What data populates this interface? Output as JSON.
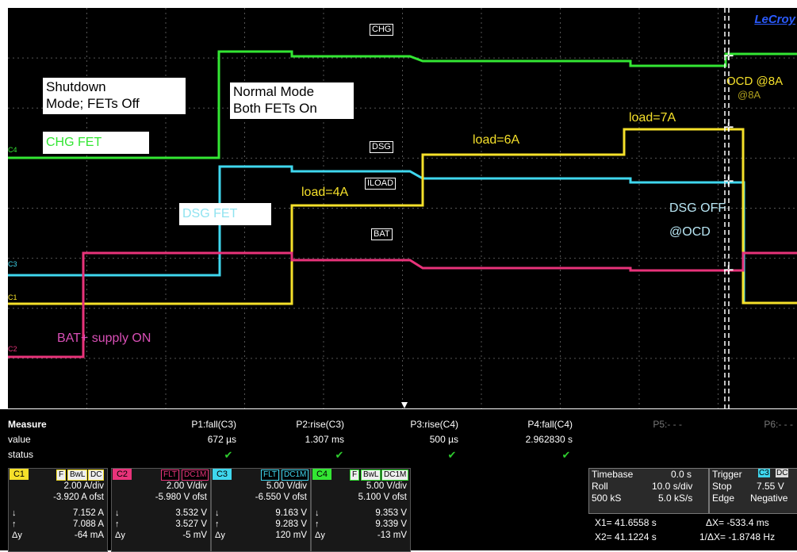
{
  "brand": "LeCroy",
  "annotations": {
    "shutdown_mode": "Shutdown\nMode; FETs Off",
    "normal_mode": "Normal Mode\nBoth FETs On",
    "chg_fet": "CHG FET",
    "dsg_fet": "DSG FET",
    "load_4a": "load=4A",
    "load_6a": "load=6A",
    "load_7a": "load=7A",
    "ocd_8a": "OCD @8A",
    "ocd_8a_ghost": "@8A",
    "dsg_off": "DSG OFF",
    "at_ocd": "@OCD",
    "bat_supply_on": "BAT+ supply ON"
  },
  "trace_labels": {
    "chg": "CHG",
    "dsg": "DSG",
    "iload": "ILOAD",
    "bat": "BAT"
  },
  "channel_tags": [
    "C4",
    "C3",
    "C1",
    "C2"
  ],
  "colors": {
    "c1": "#f5e02a",
    "c2": "#e8337a",
    "c3": "#3fd7ee",
    "c4": "#33e633",
    "grid": "#555555",
    "brand": "#2b5bff"
  },
  "measure": {
    "title": "Measure",
    "row_value": "value",
    "row_status": "status",
    "params": [
      {
        "name": "P1:fall(C3)",
        "value": "672 µs",
        "status": "✔"
      },
      {
        "name": "P2:rise(C3)",
        "value": "1.307 ms",
        "status": "✔"
      },
      {
        "name": "P3:rise(C4)",
        "value": "500 µs",
        "status": "✔"
      },
      {
        "name": "P4:fall(C4)",
        "value": "2.962830 s",
        "status": "✔"
      },
      {
        "name": "P5:- - -",
        "value": "",
        "status": ""
      },
      {
        "name": "P6:- - -",
        "value": "",
        "status": ""
      }
    ]
  },
  "channels": [
    {
      "num": "C1",
      "badges": [
        "F",
        "BwL",
        "DC"
      ],
      "vdiv": "2.00 A/div",
      "ofst": "-3.920 A ofst",
      "down": "7.152 A",
      "up": "7.088 A",
      "dy": "-64 mA",
      "color": "#f5e02a"
    },
    {
      "num": "C2",
      "badges": [
        "FLT",
        "DC1M"
      ],
      "vdiv": "2.00 V/div",
      "ofst": "-5.980 V ofst",
      "down": "3.532 V",
      "up": "3.527 V",
      "dy": "-5 mV",
      "color": "#e8337a"
    },
    {
      "num": "C3",
      "badges": [
        "FLT",
        "DC1M"
      ],
      "vdiv": "5.00 V/div",
      "ofst": "-6.550 V ofst",
      "down": "9.163 V",
      "up": "9.283 V",
      "dy": "120 mV",
      "color": "#3fd7ee"
    },
    {
      "num": "C4",
      "badges": [
        "F",
        "BwL",
        "DC1M"
      ],
      "vdiv": "5.00 V/div",
      "ofst": "5.100 V ofst",
      "down": "9.353 V",
      "up": "9.339 V",
      "dy": "-13 mV",
      "color": "#33e633"
    }
  ],
  "channel_symbols": {
    "down": "↓",
    "up": "↑",
    "dy": "Δy"
  },
  "timebase": {
    "label": "Timebase",
    "delay": "0.0 s",
    "mode": "Roll",
    "tdiv": "10.0 s/div",
    "samples": "500 kS",
    "rate": "5.0 kS/s"
  },
  "trigger": {
    "label": "Trigger",
    "source": "C3",
    "coupling": "DC",
    "state": "Stop",
    "level": "7.55 V",
    "type": "Edge",
    "slope": "Negative"
  },
  "cursors": {
    "x1": "X1= 41.6558 s",
    "dx": "ΔX= -533.4 ms",
    "x2": "X2= 41.1224 s",
    "inv_dx": "1/ΔX= -1.8748 Hz"
  }
}
